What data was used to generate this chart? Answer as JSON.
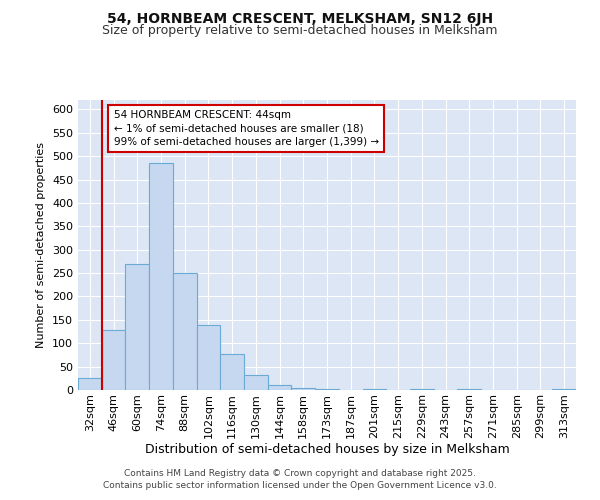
{
  "title1": "54, HORNBEAM CRESCENT, MELKSHAM, SN12 6JH",
  "title2": "Size of property relative to semi-detached houses in Melksham",
  "xlabel": "Distribution of semi-detached houses by size in Melksham",
  "ylabel": "Number of semi-detached properties",
  "categories": [
    "32sqm",
    "46sqm",
    "60sqm",
    "74sqm",
    "88sqm",
    "102sqm",
    "116sqm",
    "130sqm",
    "144sqm",
    "158sqm",
    "173sqm",
    "187sqm",
    "201sqm",
    "215sqm",
    "229sqm",
    "243sqm",
    "257sqm",
    "271sqm",
    "285sqm",
    "299sqm",
    "313sqm"
  ],
  "bar_heights": [
    25,
    128,
    270,
    485,
    250,
    140,
    78,
    32,
    10,
    5,
    2,
    0,
    2,
    0,
    2,
    0,
    2,
    0,
    0,
    0,
    2
  ],
  "bar_color": "#c5d8f0",
  "bar_edge_color": "#6aaad4",
  "plot_bg_color": "#dce6f5",
  "fig_bg_color": "#ffffff",
  "grid_color": "#ffffff",
  "red_line_x": 0.5,
  "annotation_text": "54 HORNBEAM CRESCENT: 44sqm\n← 1% of semi-detached houses are smaller (18)\n99% of semi-detached houses are larger (1,399) →",
  "annotation_box_color": "#ffffff",
  "annotation_border_color": "#cc0000",
  "ylim": [
    0,
    620
  ],
  "yticks": [
    0,
    50,
    100,
    150,
    200,
    250,
    300,
    350,
    400,
    450,
    500,
    550,
    600
  ],
  "footer": "Contains HM Land Registry data © Crown copyright and database right 2025.\nContains public sector information licensed under the Open Government Licence v3.0.",
  "title1_fontsize": 10,
  "title2_fontsize": 9,
  "xlabel_fontsize": 9,
  "ylabel_fontsize": 8,
  "tick_fontsize": 8,
  "annotation_fontsize": 7.5,
  "footer_fontsize": 6.5
}
